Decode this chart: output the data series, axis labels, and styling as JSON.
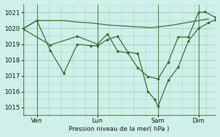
{
  "background_color": "#cff0e8",
  "grid_color": "#99ccbb",
  "line_color": "#2d6a2d",
  "xlabel": "Pression niveau de la mer( hPa )",
  "ylim": [
    1014.5,
    1021.5
  ],
  "yticks": [
    1015,
    1016,
    1017,
    1018,
    1019,
    1020,
    1021
  ],
  "figsize": [
    3.2,
    2.0
  ],
  "dpi": 100,
  "xtick_labels": [
    "Ven",
    "Lun",
    "Sam",
    "Dim"
  ],
  "xtick_positions": [
    8,
    44,
    80,
    104
  ],
  "vline_positions": [
    8,
    44,
    80,
    104
  ],
  "xlim": [
    0,
    114
  ],
  "series_flat": [
    [
      0,
      1020.0
    ],
    [
      8,
      1020.5
    ],
    [
      16,
      1020.5
    ],
    [
      24,
      1020.5
    ],
    [
      32,
      1020.4
    ],
    [
      40,
      1020.35
    ],
    [
      44,
      1020.3
    ],
    [
      52,
      1020.2
    ],
    [
      60,
      1020.15
    ],
    [
      68,
      1020.1
    ],
    [
      76,
      1020.05
    ],
    [
      80,
      1020.1
    ],
    [
      88,
      1020.2
    ],
    [
      96,
      1020.35
    ],
    [
      104,
      1020.5
    ],
    [
      110,
      1020.6
    ]
  ],
  "series_main": [
    [
      0,
      1020.0
    ],
    [
      8,
      1020.5
    ],
    [
      16,
      1018.6
    ],
    [
      24,
      1017.15
    ],
    [
      32,
      1019.0
    ],
    [
      40,
      1018.9
    ],
    [
      44,
      1018.9
    ],
    [
      50,
      1019.3
    ],
    [
      56,
      1019.5
    ],
    [
      62,
      1018.5
    ],
    [
      68,
      1018.4
    ],
    [
      74,
      1016.0
    ],
    [
      78,
      1015.5
    ],
    [
      80,
      1015.05
    ],
    [
      86,
      1016.7
    ],
    [
      92,
      1017.55
    ],
    [
      98,
      1019.2
    ],
    [
      104,
      1020.0
    ],
    [
      110,
      1020.35
    ],
    [
      114,
      1020.55
    ]
  ],
  "series_secondary": [
    [
      0,
      1019.95
    ],
    [
      16,
      1018.95
    ],
    [
      32,
      1019.5
    ],
    [
      44,
      1019.0
    ],
    [
      50,
      1019.65
    ],
    [
      56,
      1018.55
    ],
    [
      62,
      1018.45
    ],
    [
      68,
      1017.5
    ],
    [
      74,
      1016.95
    ],
    [
      80,
      1016.8
    ],
    [
      86,
      1017.85
    ],
    [
      92,
      1019.45
    ],
    [
      98,
      1019.45
    ],
    [
      104,
      1021.0
    ],
    [
      108,
      1021.05
    ],
    [
      114,
      1020.7
    ]
  ]
}
